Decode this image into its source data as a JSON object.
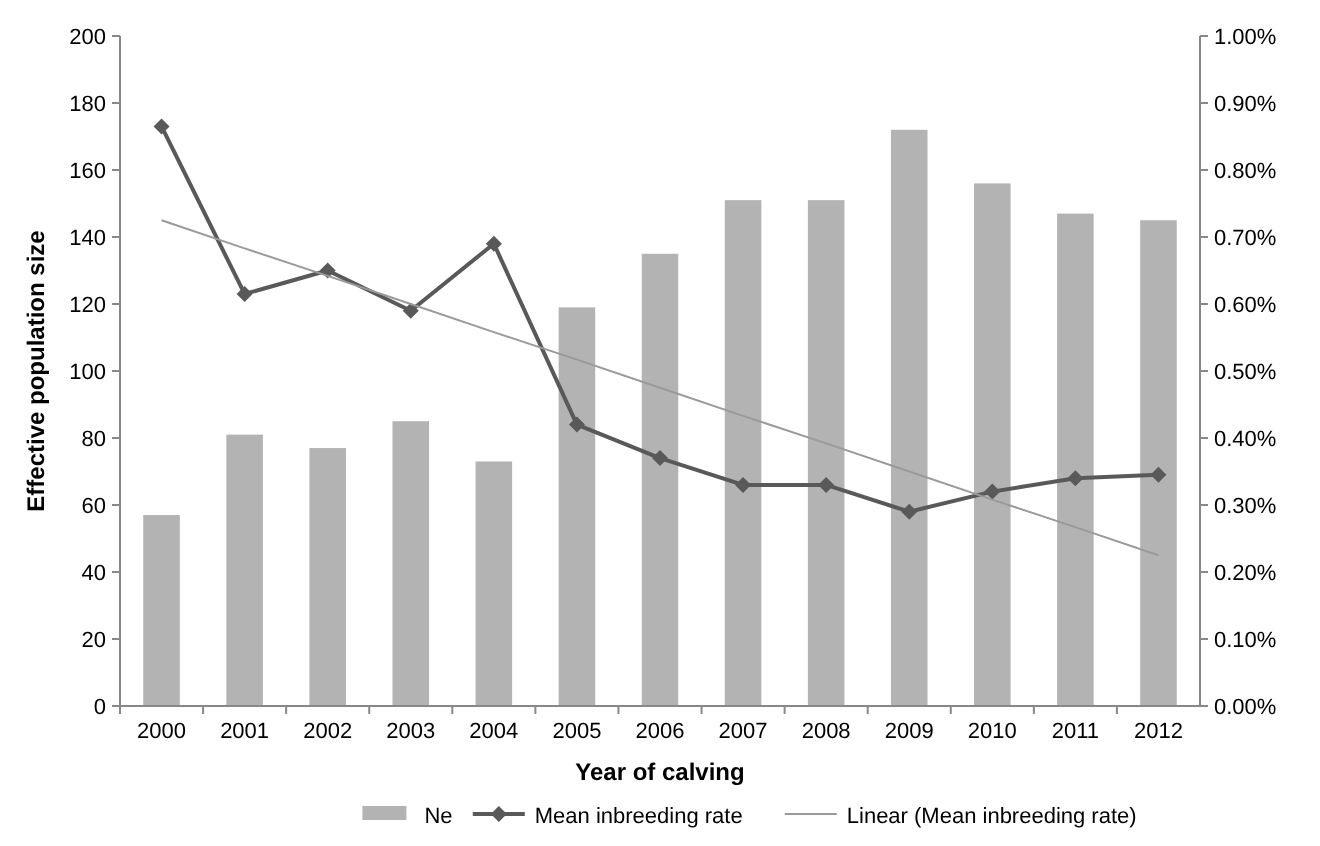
{
  "chart_data": {
    "type": "bar",
    "xlabel": "Year of calving",
    "ylabel": "Effective population size",
    "categories": [
      "2000",
      "2001",
      "2002",
      "2003",
      "2004",
      "2005",
      "2006",
      "2007",
      "2008",
      "2009",
      "2010",
      "2011",
      "2012"
    ],
    "ylim": [
      0,
      200
    ],
    "yticks": [
      0,
      20,
      40,
      60,
      80,
      100,
      120,
      140,
      160,
      180,
      200
    ],
    "y2lim": [
      0,
      1
    ],
    "y2ticks": [
      {
        "value": 0,
        "label": "0.00%"
      },
      {
        "value": 0.1,
        "label": "0.10%"
      },
      {
        "value": 0.2,
        "label": "0.20%"
      },
      {
        "value": 0.3,
        "label": "0.30%"
      },
      {
        "value": 0.4,
        "label": "0.40%"
      },
      {
        "value": 0.5,
        "label": "0.50%"
      },
      {
        "value": 0.6,
        "label": "0.60%"
      },
      {
        "value": 0.7,
        "label": "0.70%"
      },
      {
        "value": 0.8,
        "label": "0.80%"
      },
      {
        "value": 0.9,
        "label": "0.90%"
      },
      {
        "value": 1,
        "label": "1.00%"
      }
    ],
    "legend": "bottom",
    "grid": false,
    "series": [
      {
        "name": "Ne",
        "color": "#b3b3b3",
        "values": [
          57,
          81,
          77,
          85,
          73,
          119,
          135,
          151,
          151,
          172,
          156,
          147,
          145
        ]
      },
      {
        "name": "Mean inbreeding rate",
        "type": "line",
        "axis": "y2",
        "color": "#595959",
        "marker": "diamond",
        "line_style": "solid",
        "values": [
          0.865,
          0.615,
          0.65,
          0.59,
          0.69,
          0.42,
          0.37,
          0.33,
          0.33,
          0.29,
          0.32,
          0.34,
          0.345
        ]
      },
      {
        "name": "Linear (Mean inbreeding rate)",
        "type": "line",
        "axis": "y2",
        "color": "#9a9a9a",
        "marker": "none",
        "line_style": "solid",
        "values": [
          0.725,
          0.683,
          0.642,
          0.6,
          0.558,
          0.517,
          0.475,
          0.433,
          0.392,
          0.35,
          0.308,
          0.267,
          0.225
        ]
      }
    ]
  }
}
